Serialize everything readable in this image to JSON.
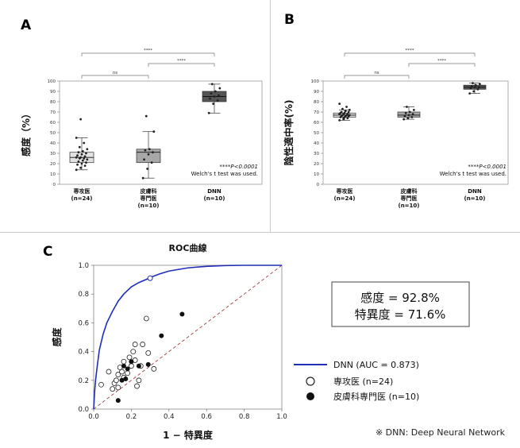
{
  "panels": {
    "a": {
      "letter": "A"
    },
    "b": {
      "letter": "B"
    },
    "c": {
      "letter": "C"
    }
  },
  "chart_data": [
    {
      "id": "A",
      "type": "box",
      "ylabel": "感度（%）",
      "ylim": [
        0,
        100
      ],
      "yticks": [
        0,
        10,
        20,
        30,
        40,
        50,
        60,
        70,
        80,
        90,
        100
      ],
      "groups": [
        {
          "label_lines": [
            "専攻医",
            "(n=24)"
          ],
          "q1": 21,
          "median": 26,
          "q3": 31,
          "whisker_low": 14,
          "whisker_high": 45,
          "fill": "#e2e2e2",
          "points": [
            14,
            16,
            18,
            19,
            20,
            21,
            22,
            23,
            24,
            25,
            25,
            26,
            26,
            27,
            28,
            29,
            30,
            31,
            32,
            34,
            36,
            40,
            45,
            63
          ]
        },
        {
          "label_lines": [
            "皮膚科",
            "専門医",
            "(n=10)"
          ],
          "q1": 21,
          "median": 31,
          "q3": 34,
          "whisker_low": 6,
          "whisker_high": 51,
          "fill": "#a8a8a8",
          "points": [
            6,
            15,
            21,
            24,
            29,
            31,
            33,
            34,
            51,
            66
          ]
        },
        {
          "label_lines": [
            "DNN",
            "(n=10)"
          ],
          "q1": 80,
          "median": 85,
          "q3": 90,
          "whisker_low": 69,
          "whisker_high": 97,
          "fill": "#555555",
          "points": [
            69,
            78,
            81,
            83,
            85,
            86,
            88,
            90,
            93,
            97
          ]
        }
      ],
      "significance": [
        {
          "from": 0,
          "to": 1,
          "label": "ns",
          "level": 1
        },
        {
          "from": 1,
          "to": 2,
          "label": "****",
          "level": 2
        },
        {
          "from": 0,
          "to": 2,
          "label": "****",
          "level": 3
        }
      ],
      "note_p": "****P<0.0001",
      "note_test": "Welch's t test was used."
    },
    {
      "id": "B",
      "type": "box",
      "ylabel": "陰性適中率(%)",
      "ylim": [
        0,
        100
      ],
      "yticks": [
        0,
        10,
        20,
        30,
        40,
        50,
        60,
        70,
        80,
        90,
        100
      ],
      "groups": [
        {
          "label_lines": [
            "専攻医",
            "(n=24)"
          ],
          "q1": 65,
          "median": 67,
          "q3": 69,
          "whisker_low": 62,
          "whisker_high": 72,
          "fill": "#e2e2e2",
          "points": [
            62,
            63,
            64,
            65,
            65,
            66,
            66,
            66,
            67,
            67,
            67,
            68,
            68,
            68,
            69,
            69,
            70,
            70,
            71,
            72,
            73,
            75,
            78,
            64
          ]
        },
        {
          "label_lines": [
            "皮膚科",
            "専門医",
            "(n=10)"
          ],
          "q1": 65,
          "median": 67,
          "q3": 70,
          "whisker_low": 63,
          "whisker_high": 75,
          "fill": "#a8a8a8",
          "points": [
            63,
            64,
            65,
            66,
            67,
            68,
            69,
            70,
            72,
            75
          ]
        },
        {
          "label_lines": [
            "DNN",
            "(n=10)"
          ],
          "q1": 92,
          "median": 94,
          "q3": 96,
          "whisker_low": 88,
          "whisker_high": 98,
          "fill": "#555555",
          "points": [
            88,
            90,
            92,
            93,
            94,
            94,
            95,
            96,
            97,
            98
          ]
        }
      ],
      "significance": [
        {
          "from": 0,
          "to": 1,
          "label": "ns",
          "level": 1
        },
        {
          "from": 1,
          "to": 2,
          "label": "****",
          "level": 2
        },
        {
          "from": 0,
          "to": 2,
          "label": "****",
          "level": 3
        }
      ],
      "note_p": "****P<0.0001",
      "note_test": "Welch's t test was used."
    },
    {
      "id": "C",
      "type": "line",
      "title": "ROC曲線",
      "xlabel": "1 − 特異度",
      "ylabel": "感度",
      "xlim": [
        0,
        1
      ],
      "ylim": [
        0,
        1
      ],
      "xticks": [
        0.0,
        0.2,
        0.4,
        0.6,
        0.8,
        1.0
      ],
      "yticks": [
        0.0,
        0.2,
        0.4,
        0.6,
        0.8,
        1.0
      ],
      "tick_labels": [
        "0.0",
        "0.2",
        "0.4",
        "0.6",
        "0.8",
        "1.0"
      ],
      "series": [
        {
          "name": "DNN (AUC = 0.873)",
          "kind": "line",
          "color": "#1f2fb5",
          "x": [
            0.0,
            0.005,
            0.01,
            0.02,
            0.03,
            0.05,
            0.07,
            0.1,
            0.13,
            0.16,
            0.2,
            0.24,
            0.28,
            0.3,
            0.35,
            0.4,
            0.5,
            0.6,
            0.7,
            0.8,
            0.9,
            1.0
          ],
          "y": [
            0.0,
            0.12,
            0.2,
            0.31,
            0.41,
            0.52,
            0.6,
            0.68,
            0.75,
            0.8,
            0.85,
            0.88,
            0.902,
            0.915,
            0.94,
            0.96,
            0.982,
            0.993,
            0.998,
            1.0,
            1.0,
            1.0
          ]
        },
        {
          "name": "専攻医 (n=24)",
          "kind": "scatter",
          "marker": "open",
          "x": [
            0.04,
            0.08,
            0.1,
            0.11,
            0.12,
            0.13,
            0.13,
            0.14,
            0.15,
            0.16,
            0.16,
            0.18,
            0.19,
            0.2,
            0.21,
            0.22,
            0.22,
            0.23,
            0.24,
            0.25,
            0.26,
            0.28,
            0.29,
            0.32
          ],
          "y": [
            0.17,
            0.26,
            0.14,
            0.18,
            0.2,
            0.24,
            0.15,
            0.29,
            0.26,
            0.22,
            0.33,
            0.25,
            0.36,
            0.3,
            0.4,
            0.34,
            0.45,
            0.16,
            0.2,
            0.3,
            0.45,
            0.63,
            0.39,
            0.28
          ]
        },
        {
          "name": "皮膚科専門医 (n=10)",
          "kind": "scatter",
          "marker": "filled",
          "x": [
            0.13,
            0.15,
            0.16,
            0.17,
            0.18,
            0.2,
            0.24,
            0.29,
            0.36,
            0.47
          ],
          "y": [
            0.06,
            0.2,
            0.3,
            0.21,
            0.28,
            0.33,
            0.3,
            0.31,
            0.51,
            0.66
          ]
        }
      ],
      "chance_line_color": "#a04040",
      "operating_point": {
        "x": 0.3,
        "y": 0.91
      },
      "metrics_box": {
        "line1": "感度 = 92.8%",
        "line2": "特異度 = 71.6%"
      },
      "footnote": "※ DNN: Deep Neural Network"
    }
  ]
}
